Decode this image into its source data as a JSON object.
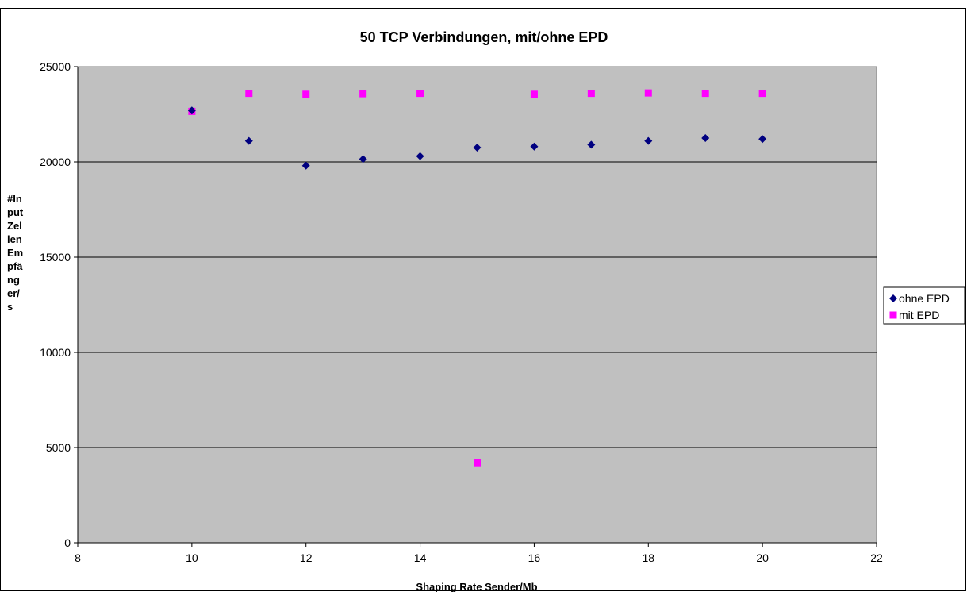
{
  "chart_data": {
    "type": "scatter",
    "title": "50 TCP Verbindungen, mit/ohne EPD",
    "xlabel": "Shaping  Rate Sender/Mb",
    "ylabel_lines": [
      "#In",
      "put",
      "Zel",
      "len",
      "Em",
      "pfä",
      "ng",
      "er/",
      "s"
    ],
    "xlim": [
      8,
      22
    ],
    "ylim": [
      0,
      25000
    ],
    "x_ticks": [
      "8",
      "10",
      "12",
      "14",
      "16",
      "18",
      "20",
      "22"
    ],
    "y_ticks": [
      "0",
      "5000",
      "10000",
      "15000",
      "20000",
      "25000"
    ],
    "grid": "horizontal",
    "legend_position": "right",
    "series": [
      {
        "name": "ohne EPD",
        "marker": "diamond",
        "color": "#000080",
        "points": [
          [
            10,
            22700
          ],
          [
            11,
            21100
          ],
          [
            12,
            19800
          ],
          [
            13,
            20150
          ],
          [
            14,
            20300
          ],
          [
            15,
            20750
          ],
          [
            16,
            20800
          ],
          [
            17,
            20900
          ],
          [
            18,
            21100
          ],
          [
            19,
            21250
          ],
          [
            20,
            21200
          ]
        ]
      },
      {
        "name": "mit EPD",
        "marker": "square",
        "color": "#ff00ff",
        "points": [
          [
            10,
            22650
          ],
          [
            11,
            23600
          ],
          [
            12,
            23550
          ],
          [
            13,
            23580
          ],
          [
            14,
            23600
          ],
          [
            15,
            4200
          ],
          [
            16,
            23550
          ],
          [
            17,
            23600
          ],
          [
            18,
            23620
          ],
          [
            19,
            23600
          ],
          [
            20,
            23600
          ]
        ]
      }
    ]
  }
}
